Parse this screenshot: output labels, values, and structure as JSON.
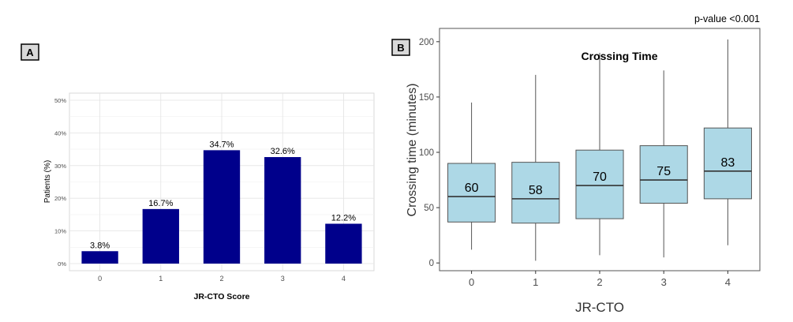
{
  "chart_data": [
    {
      "type": "bar",
      "panel_label": "A",
      "title": "",
      "xlabel": "JR-CTO Score",
      "ylabel": "Patients (%)",
      "categories": [
        "0",
        "1",
        "2",
        "3",
        "4"
      ],
      "values": [
        3.8,
        16.7,
        34.7,
        32.6,
        12.2
      ],
      "data_labels": [
        "3.8%",
        "16.7%",
        "34.7%",
        "32.6%",
        "12.2%"
      ],
      "ylim": [
        0,
        50
      ],
      "yticks": [
        0,
        10,
        20,
        30,
        40,
        50
      ],
      "ytick_labels": [
        "0%",
        "10%",
        "20%",
        "30%",
        "40%",
        "50%"
      ],
      "grid": true,
      "bar_color": "#00008B"
    },
    {
      "type": "box",
      "panel_label": "B",
      "title": "Crossing Time",
      "annotation": "p-value <0.001",
      "xlabel": "JR-CTO",
      "ylabel": "Crossing time (minutes)",
      "categories": [
        "0",
        "1",
        "2",
        "3",
        "4"
      ],
      "boxes": [
        {
          "whisker_low": 12,
          "q1": 37,
          "median": 60,
          "q3": 90,
          "whisker_high": 145,
          "label": "60"
        },
        {
          "whisker_low": 2,
          "q1": 36,
          "median": 58,
          "q3": 91,
          "whisker_high": 170,
          "label": "58"
        },
        {
          "whisker_low": 7,
          "q1": 40,
          "median": 70,
          "q3": 102,
          "whisker_high": 190,
          "label": "70"
        },
        {
          "whisker_low": 5,
          "q1": 54,
          "median": 75,
          "q3": 106,
          "whisker_high": 174,
          "label": "75"
        },
        {
          "whisker_low": 16,
          "q1": 58,
          "median": 83,
          "q3": 122,
          "whisker_high": 202,
          "label": "83"
        }
      ],
      "ylim": [
        -7,
        212
      ],
      "yticks": [
        0,
        50,
        100,
        150,
        200
      ],
      "ytick_labels": [
        "0",
        "50",
        "100",
        "150",
        "200"
      ],
      "grid": false,
      "box_color": "#ADD8E6"
    }
  ]
}
